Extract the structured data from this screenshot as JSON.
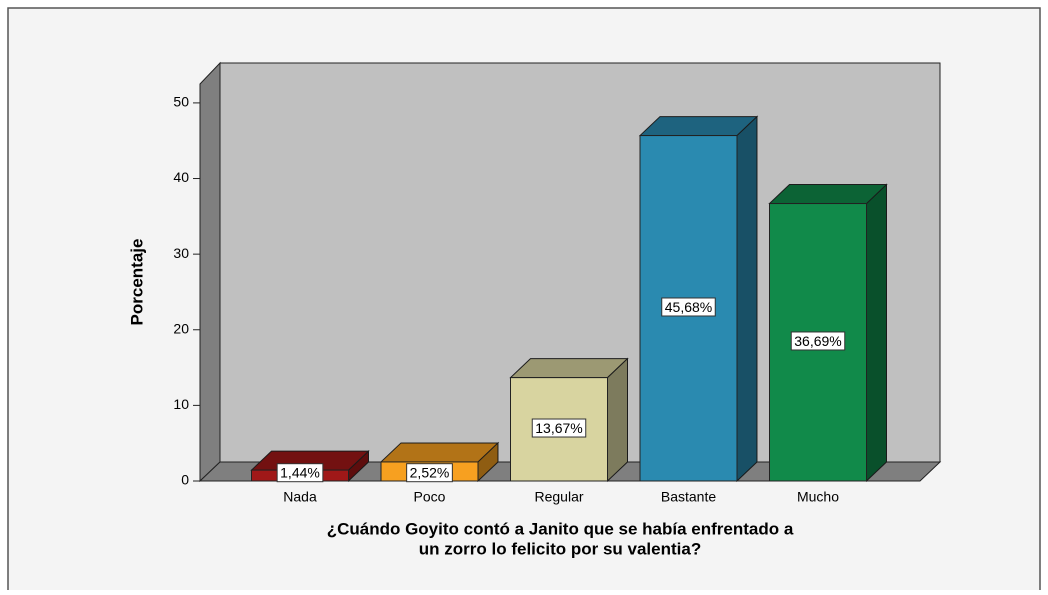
{
  "chart_data": {
    "type": "bar3d",
    "y_label": "Porcentaje",
    "x_label": [
      "¿Cuándo Goyito contó a Janito que se había enfrentado a",
      "un zorro lo felicito por su valentia?"
    ],
    "categories": [
      "Nada",
      "Poco",
      "Regular",
      "Bastante",
      "Mucho"
    ],
    "values": [
      1.44,
      2.52,
      13.67,
      45.68,
      36.69
    ],
    "value_labels": [
      "1,44%",
      "2,52%",
      "13,67%",
      "45,68%",
      "36,69%"
    ],
    "colors": [
      "#a01818",
      "#f7a020",
      "#d8d4a0",
      "#2a8ab0",
      "#118a4a"
    ],
    "ylim": [
      0,
      52.5
    ],
    "yticks": [
      0,
      10,
      20,
      30,
      40,
      50
    ]
  }
}
